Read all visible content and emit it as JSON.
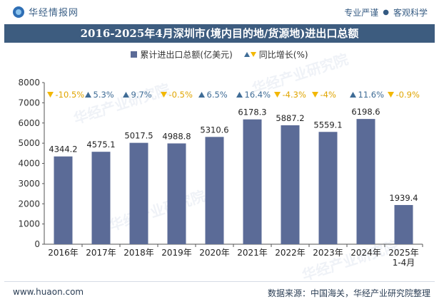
{
  "header": {
    "brand": "华经情报网",
    "tags": [
      "专业严谨",
      "客观科学"
    ]
  },
  "legend": {
    "series_label": "累计进出口总额(亿美元)",
    "growth_label": "同比增长(%)"
  },
  "footer": {
    "url": "www.huaon.com",
    "source": "数据来源：中国海关，华经产业研究院整理"
  },
  "watermark": "华经产业研究院",
  "colors": {
    "bar": "#5b6b97",
    "up": "#3f6c96",
    "down": "#f2b705",
    "title_bg": "#3d5c7f"
  },
  "chart_data": {
    "type": "bar",
    "title": "2016-2025年4月深圳市(境内目的地/货源地)进出口总额",
    "categories": [
      "2016年",
      "2017年",
      "2018年",
      "2019年",
      "2020年",
      "2021年",
      "2022年",
      "2023年",
      "2024年",
      "2025年\n1-4月"
    ],
    "series": [
      {
        "name": "累计进出口总额(亿美元)",
        "values": [
          4344.2,
          4575.1,
          5017.5,
          4988.8,
          5310.6,
          6178.3,
          5887.2,
          5559.1,
          6198.6,
          1939.4
        ],
        "labels": [
          "4344.2",
          "4575.1",
          "5017.5",
          "4988.8",
          "5310.6",
          "6178.3",
          "5887.2",
          "5559.1",
          "6198.6",
          "1939.4"
        ]
      }
    ],
    "growth": {
      "name": "同比增长(%)",
      "values": [
        -10.5,
        5.3,
        9.7,
        -0.5,
        6.5,
        16.4,
        -4.3,
        -4,
        11.6,
        -0.9
      ],
      "labels": [
        "-10.5%",
        "5.3%",
        "9.7%",
        "-0.5%",
        "6.5%",
        "16.4%",
        "-4.3%",
        "-4%",
        "11.6%",
        "-0.9%"
      ]
    },
    "ylim": [
      0,
      8000
    ],
    "yticks": [
      "0",
      "1000",
      "2000",
      "3000",
      "4000",
      "5000",
      "6000",
      "7000",
      "8000"
    ],
    "grid": false,
    "legend_position": "top"
  }
}
